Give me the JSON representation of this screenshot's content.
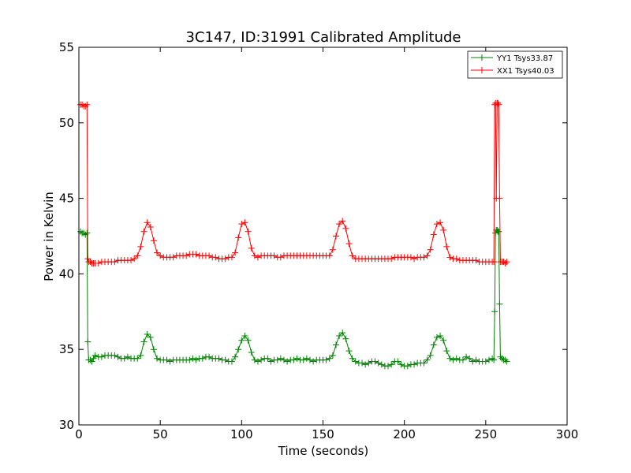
{
  "chart_data": {
    "type": "line",
    "title": "3C147, ID:31991 Calibrated Amplitude",
    "xlabel": "Time (seconds)",
    "ylabel": "Power in Kelvin",
    "xlim": [
      0,
      300
    ],
    "ylim": [
      30,
      55
    ],
    "xticks": [
      "0",
      "50",
      "100",
      "150",
      "200",
      "250",
      "300"
    ],
    "yticks": [
      "30",
      "35",
      "40",
      "45",
      "50",
      "55"
    ],
    "grid": false,
    "legend_position": "top-right",
    "marker": "+",
    "series": [
      {
        "name": "YY1 Tsys33.87",
        "color": "#008000",
        "points": [
          [
            1,
            42.8
          ],
          [
            2,
            42.7
          ],
          [
            3,
            42.7
          ],
          [
            4,
            42.6
          ],
          [
            5,
            42.7
          ],
          [
            5.5,
            35.5
          ],
          [
            6,
            34.3
          ],
          [
            7,
            34.3
          ],
          [
            8,
            34.2
          ],
          [
            9,
            34.4
          ],
          [
            10,
            34.6
          ],
          [
            12,
            34.5
          ],
          [
            14,
            34.5
          ],
          [
            16,
            34.6
          ],
          [
            18,
            34.6
          ],
          [
            20,
            34.6
          ],
          [
            22,
            34.6
          ],
          [
            24,
            34.5
          ],
          [
            26,
            34.4
          ],
          [
            28,
            34.4
          ],
          [
            30,
            34.5
          ],
          [
            32,
            34.4
          ],
          [
            34,
            34.4
          ],
          [
            36,
            34.4
          ],
          [
            38,
            34.6
          ],
          [
            40,
            35.5
          ],
          [
            42,
            36.0
          ],
          [
            44,
            35.8
          ],
          [
            46,
            35.0
          ],
          [
            48,
            34.4
          ],
          [
            50,
            34.3
          ],
          [
            52,
            34.3
          ],
          [
            54,
            34.3
          ],
          [
            56,
            34.2
          ],
          [
            58,
            34.3
          ],
          [
            60,
            34.3
          ],
          [
            62,
            34.3
          ],
          [
            64,
            34.3
          ],
          [
            66,
            34.3
          ],
          [
            68,
            34.3
          ],
          [
            70,
            34.4
          ],
          [
            72,
            34.3
          ],
          [
            74,
            34.4
          ],
          [
            76,
            34.4
          ],
          [
            78,
            34.5
          ],
          [
            80,
            34.5
          ],
          [
            82,
            34.4
          ],
          [
            84,
            34.4
          ],
          [
            86,
            34.4
          ],
          [
            88,
            34.3
          ],
          [
            90,
            34.3
          ],
          [
            92,
            34.2
          ],
          [
            94,
            34.2
          ],
          [
            96,
            34.5
          ],
          [
            98,
            35.0
          ],
          [
            100,
            35.6
          ],
          [
            102,
            35.9
          ],
          [
            104,
            35.6
          ],
          [
            106,
            34.8
          ],
          [
            108,
            34.3
          ],
          [
            110,
            34.2
          ],
          [
            112,
            34.3
          ],
          [
            114,
            34.4
          ],
          [
            116,
            34.4
          ],
          [
            118,
            34.2
          ],
          [
            120,
            34.3
          ],
          [
            122,
            34.3
          ],
          [
            124,
            34.4
          ],
          [
            126,
            34.3
          ],
          [
            128,
            34.2
          ],
          [
            130,
            34.3
          ],
          [
            132,
            34.3
          ],
          [
            134,
            34.4
          ],
          [
            136,
            34.3
          ],
          [
            138,
            34.3
          ],
          [
            140,
            34.4
          ],
          [
            142,
            34.3
          ],
          [
            144,
            34.2
          ],
          [
            146,
            34.3
          ],
          [
            148,
            34.3
          ],
          [
            150,
            34.3
          ],
          [
            152,
            34.3
          ],
          [
            154,
            34.4
          ],
          [
            156,
            34.6
          ],
          [
            158,
            35.3
          ],
          [
            160,
            35.9
          ],
          [
            162,
            36.1
          ],
          [
            164,
            35.7
          ],
          [
            166,
            34.9
          ],
          [
            168,
            34.4
          ],
          [
            170,
            34.2
          ],
          [
            172,
            34.1
          ],
          [
            174,
            34.1
          ],
          [
            176,
            34.0
          ],
          [
            178,
            34.1
          ],
          [
            180,
            34.2
          ],
          [
            182,
            34.2
          ],
          [
            184,
            34.1
          ],
          [
            186,
            34.0
          ],
          [
            188,
            33.9
          ],
          [
            190,
            33.9
          ],
          [
            192,
            34.0
          ],
          [
            194,
            34.2
          ],
          [
            196,
            34.2
          ],
          [
            198,
            34.0
          ],
          [
            200,
            33.9
          ],
          [
            202,
            33.9
          ],
          [
            204,
            34.0
          ],
          [
            206,
            34.0
          ],
          [
            208,
            34.1
          ],
          [
            210,
            34.1
          ],
          [
            212,
            34.1
          ],
          [
            214,
            34.3
          ],
          [
            216,
            34.6
          ],
          [
            218,
            35.3
          ],
          [
            220,
            35.8
          ],
          [
            222,
            35.9
          ],
          [
            224,
            35.6
          ],
          [
            226,
            34.9
          ],
          [
            228,
            34.4
          ],
          [
            230,
            34.3
          ],
          [
            232,
            34.4
          ],
          [
            234,
            34.3
          ],
          [
            236,
            34.3
          ],
          [
            238,
            34.5
          ],
          [
            240,
            34.4
          ],
          [
            242,
            34.2
          ],
          [
            244,
            34.3
          ],
          [
            246,
            34.2
          ],
          [
            248,
            34.2
          ],
          [
            250,
            34.2
          ],
          [
            252,
            34.3
          ],
          [
            254,
            34.4
          ],
          [
            255,
            34.3
          ],
          [
            255.5,
            37.5
          ],
          [
            256,
            42.7
          ],
          [
            256.5,
            42.9
          ],
          [
            257,
            42.9
          ],
          [
            257.5,
            42.8
          ],
          [
            258,
            42.8
          ],
          [
            258.5,
            38.0
          ],
          [
            259,
            34.5
          ],
          [
            260,
            34.4
          ],
          [
            261,
            34.3
          ],
          [
            262,
            34.3
          ],
          [
            263,
            34.2
          ]
        ]
      },
      {
        "name": "XX1 Tsys40.03",
        "color": "#ff0000",
        "points": [
          [
            1,
            51.2
          ],
          [
            2,
            51.2
          ],
          [
            3,
            51.1
          ],
          [
            4,
            51.1
          ],
          [
            5,
            51.2
          ],
          [
            5.5,
            41.0
          ],
          [
            6,
            40.8
          ],
          [
            7,
            40.8
          ],
          [
            8,
            40.7
          ],
          [
            9,
            40.7
          ],
          [
            10,
            40.7
          ],
          [
            12,
            40.7
          ],
          [
            14,
            40.8
          ],
          [
            16,
            40.8
          ],
          [
            18,
            40.8
          ],
          [
            20,
            40.8
          ],
          [
            22,
            40.8
          ],
          [
            24,
            40.9
          ],
          [
            26,
            40.9
          ],
          [
            28,
            40.9
          ],
          [
            30,
            40.9
          ],
          [
            32,
            40.9
          ],
          [
            34,
            41.0
          ],
          [
            36,
            41.2
          ],
          [
            38,
            41.8
          ],
          [
            40,
            42.8
          ],
          [
            42,
            43.4
          ],
          [
            44,
            43.1
          ],
          [
            46,
            42.2
          ],
          [
            48,
            41.4
          ],
          [
            50,
            41.2
          ],
          [
            52,
            41.1
          ],
          [
            54,
            41.1
          ],
          [
            56,
            41.1
          ],
          [
            58,
            41.1
          ],
          [
            60,
            41.2
          ],
          [
            62,
            41.2
          ],
          [
            64,
            41.2
          ],
          [
            66,
            41.2
          ],
          [
            68,
            41.3
          ],
          [
            70,
            41.3
          ],
          [
            72,
            41.3
          ],
          [
            74,
            41.2
          ],
          [
            76,
            41.2
          ],
          [
            78,
            41.2
          ],
          [
            80,
            41.2
          ],
          [
            82,
            41.1
          ],
          [
            84,
            41.1
          ],
          [
            86,
            41.0
          ],
          [
            88,
            41.0
          ],
          [
            90,
            41.0
          ],
          [
            92,
            41.1
          ],
          [
            94,
            41.1
          ],
          [
            96,
            41.4
          ],
          [
            98,
            42.4
          ],
          [
            100,
            43.3
          ],
          [
            102,
            43.4
          ],
          [
            104,
            42.8
          ],
          [
            106,
            41.7
          ],
          [
            108,
            41.2
          ],
          [
            110,
            41.1
          ],
          [
            112,
            41.2
          ],
          [
            114,
            41.2
          ],
          [
            116,
            41.2
          ],
          [
            118,
            41.2
          ],
          [
            120,
            41.2
          ],
          [
            122,
            41.1
          ],
          [
            124,
            41.1
          ],
          [
            126,
            41.2
          ],
          [
            128,
            41.2
          ],
          [
            130,
            41.2
          ],
          [
            132,
            41.2
          ],
          [
            134,
            41.2
          ],
          [
            136,
            41.2
          ],
          [
            138,
            41.2
          ],
          [
            140,
            41.2
          ],
          [
            142,
            41.2
          ],
          [
            144,
            41.2
          ],
          [
            146,
            41.2
          ],
          [
            148,
            41.2
          ],
          [
            150,
            41.2
          ],
          [
            152,
            41.2
          ],
          [
            154,
            41.2
          ],
          [
            156,
            41.6
          ],
          [
            158,
            42.5
          ],
          [
            160,
            43.3
          ],
          [
            162,
            43.5
          ],
          [
            164,
            43.0
          ],
          [
            166,
            42.0
          ],
          [
            168,
            41.2
          ],
          [
            170,
            41.0
          ],
          [
            172,
            41.0
          ],
          [
            174,
            41.0
          ],
          [
            176,
            41.0
          ],
          [
            178,
            41.0
          ],
          [
            180,
            41.0
          ],
          [
            182,
            41.0
          ],
          [
            184,
            41.0
          ],
          [
            186,
            41.0
          ],
          [
            188,
            41.0
          ],
          [
            190,
            41.0
          ],
          [
            192,
            41.0
          ],
          [
            194,
            41.1
          ],
          [
            196,
            41.1
          ],
          [
            198,
            41.1
          ],
          [
            200,
            41.1
          ],
          [
            202,
            41.1
          ],
          [
            204,
            41.1
          ],
          [
            206,
            41.0
          ],
          [
            208,
            41.1
          ],
          [
            210,
            41.1
          ],
          [
            212,
            41.1
          ],
          [
            214,
            41.2
          ],
          [
            216,
            41.6
          ],
          [
            218,
            42.6
          ],
          [
            220,
            43.3
          ],
          [
            222,
            43.4
          ],
          [
            224,
            42.9
          ],
          [
            226,
            41.8
          ],
          [
            228,
            41.1
          ],
          [
            230,
            41.0
          ],
          [
            232,
            41.0
          ],
          [
            234,
            40.9
          ],
          [
            236,
            40.9
          ],
          [
            238,
            40.9
          ],
          [
            240,
            40.9
          ],
          [
            242,
            40.9
          ],
          [
            244,
            40.9
          ],
          [
            246,
            40.8
          ],
          [
            248,
            40.8
          ],
          [
            250,
            40.8
          ],
          [
            252,
            40.8
          ],
          [
            254,
            40.8
          ],
          [
            255,
            40.8
          ],
          [
            255.5,
            51.2
          ],
          [
            256,
            51.3
          ],
          [
            256.5,
            45.0
          ],
          [
            257,
            51.3
          ],
          [
            257.5,
            51.3
          ],
          [
            258,
            51.2
          ],
          [
            258.5,
            45.0
          ],
          [
            259,
            40.8
          ],
          [
            260,
            40.8
          ],
          [
            261,
            40.8
          ],
          [
            262,
            40.7
          ],
          [
            263,
            40.8
          ]
        ]
      }
    ]
  }
}
